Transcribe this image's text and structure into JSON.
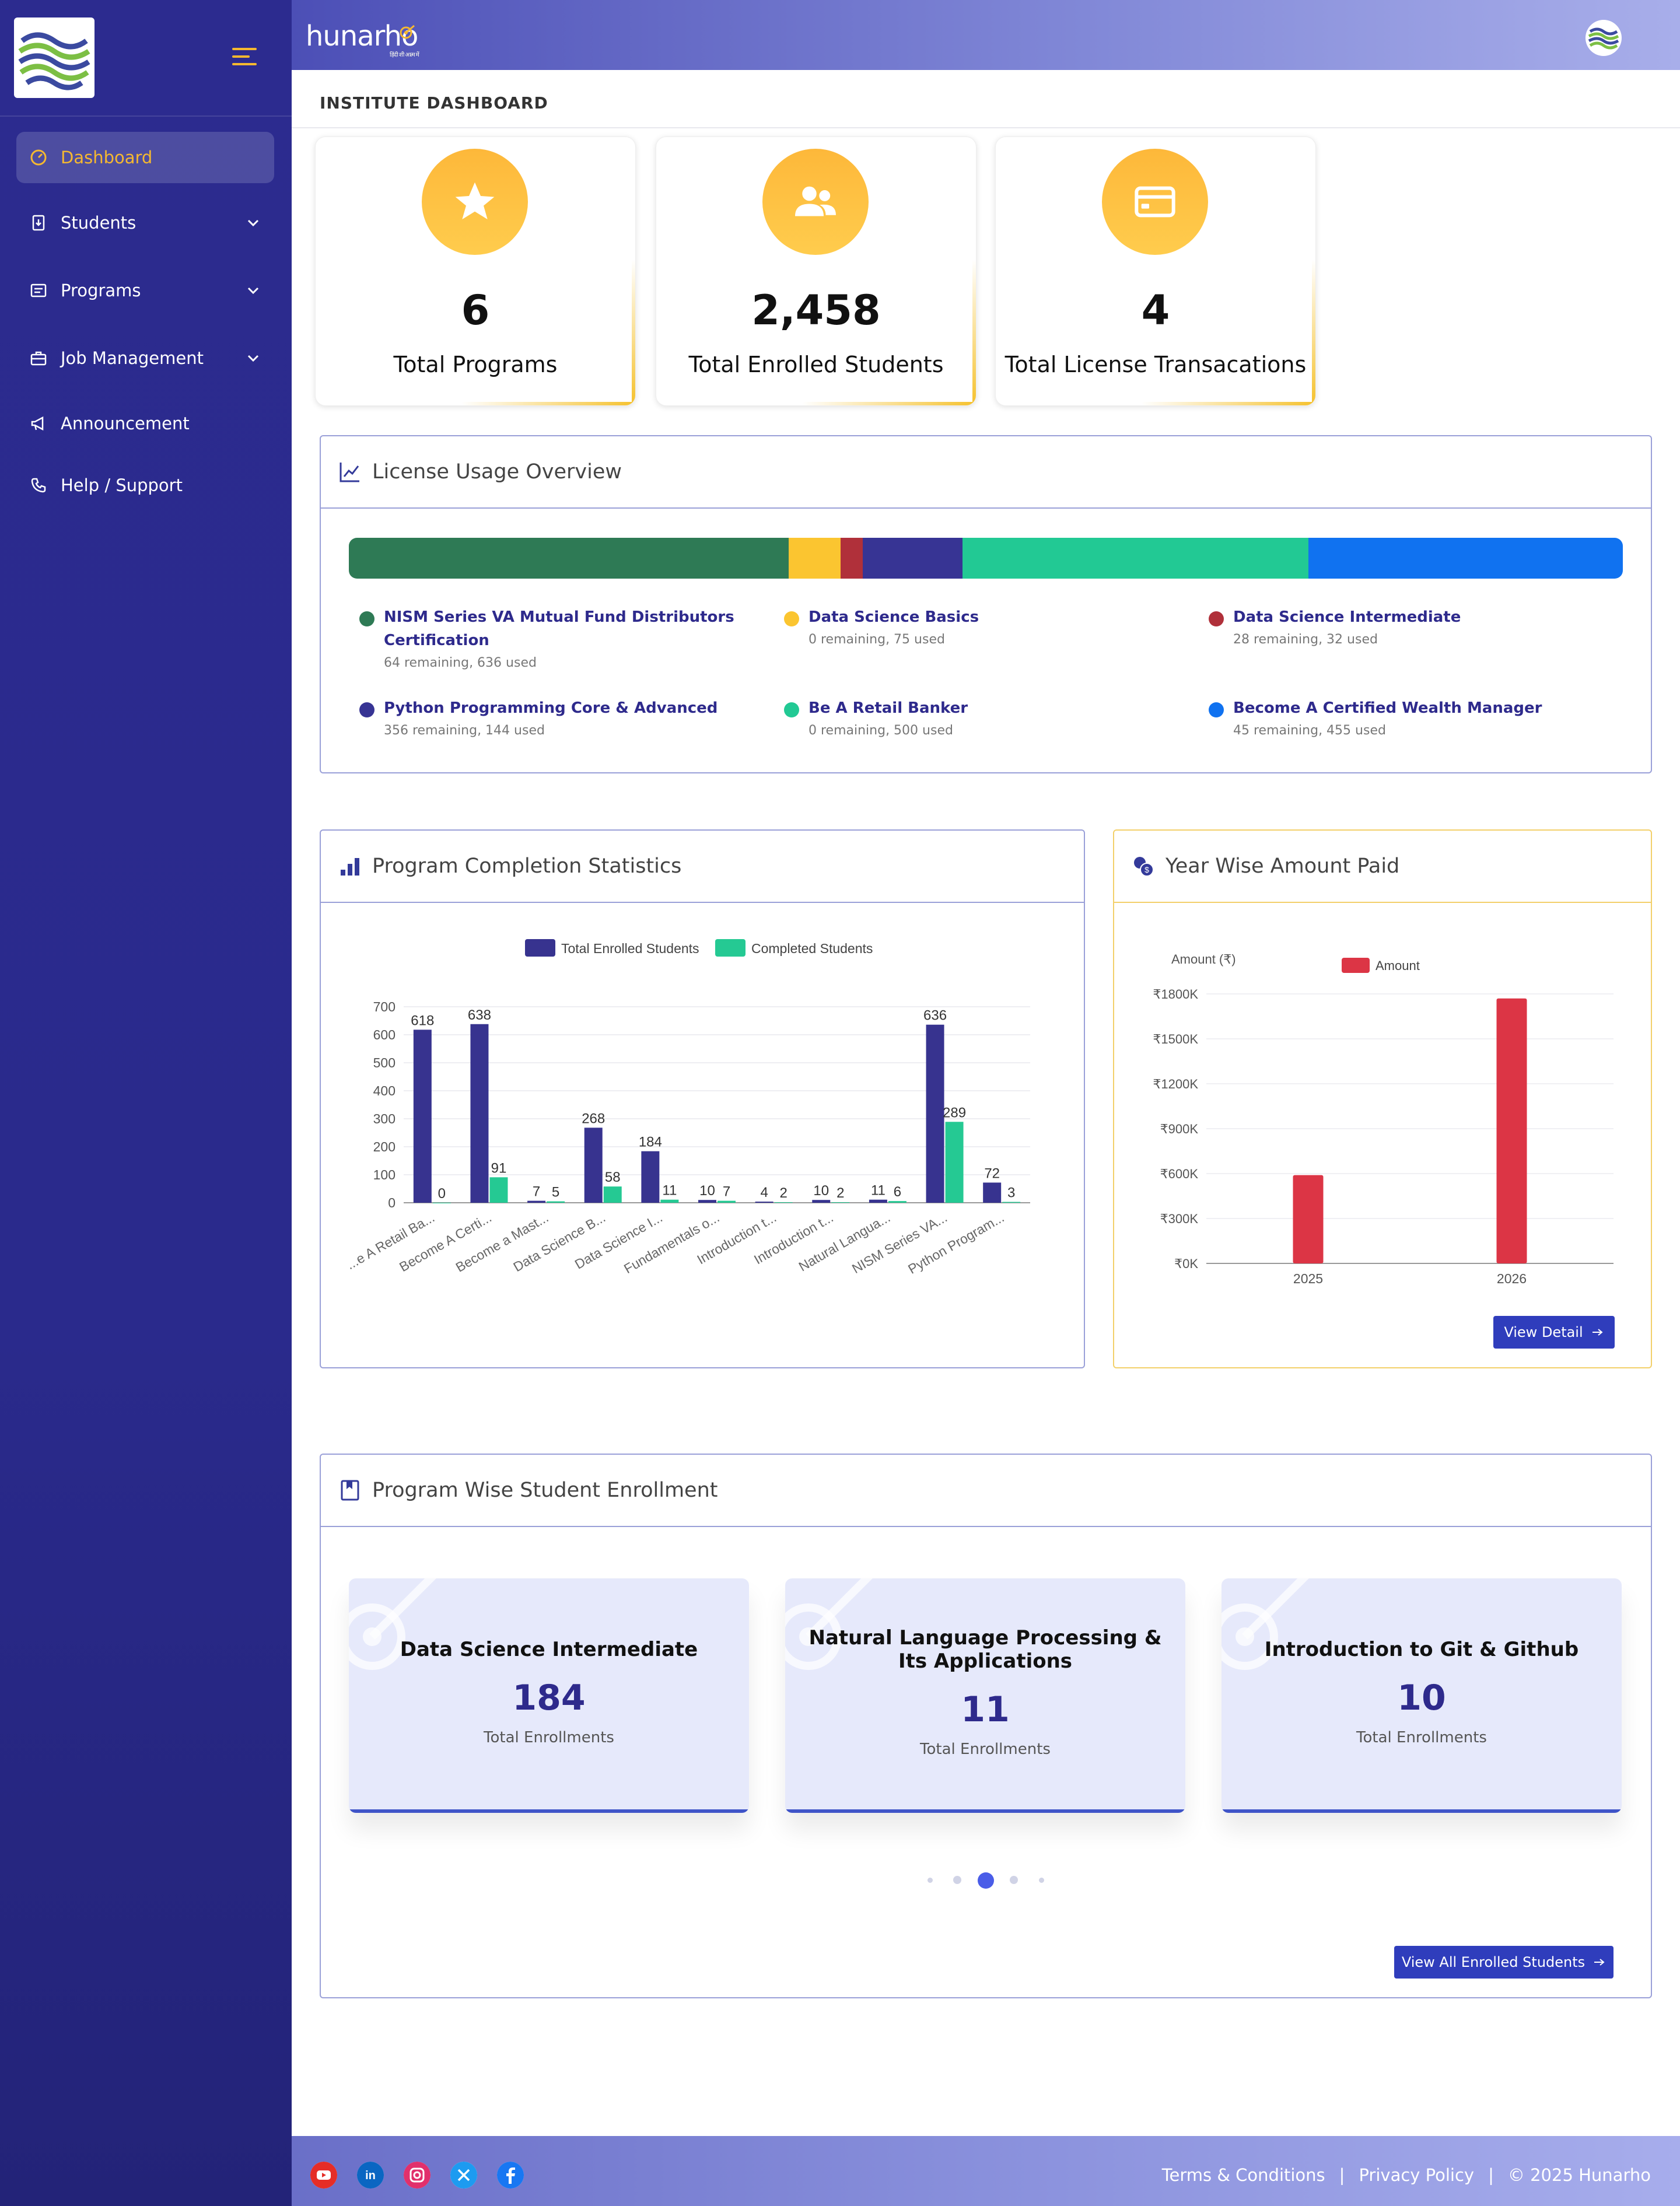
{
  "sidebar": {
    "items": [
      {
        "label": "Dashboard",
        "active": true,
        "icon": "gauge-icon"
      },
      {
        "label": "Students",
        "icon": "student-file-icon",
        "has_submenu": true
      },
      {
        "label": "Programs",
        "icon": "list-icon",
        "has_submenu": true
      },
      {
        "label": "Job Management",
        "icon": "briefcase-icon",
        "has_submenu": true
      },
      {
        "label": "Announcement",
        "icon": "megaphone-icon"
      },
      {
        "label": "Help / Support",
        "icon": "phone-icon"
      }
    ]
  },
  "header": {
    "brand": "hunarho",
    "tagline": "हिंदी शी आत्म में"
  },
  "page_title": "INSTITUTE DASHBOARD",
  "stats": [
    {
      "value": "6",
      "label": "Total Programs",
      "icon": "star-icon"
    },
    {
      "value": "2,458",
      "label": "Total Enrolled Students",
      "icon": "users-icon"
    },
    {
      "value": "4",
      "label": "Total License Transacations",
      "icon": "credit-card-icon"
    }
  ],
  "license": {
    "title": "License Usage Overview",
    "segments": [
      {
        "name": "NISM Series VA Mutual Fund Distributors Certification",
        "sub": "64 remaining, 636 used",
        "color": "#2e7a55",
        "used": 636
      },
      {
        "name": "Data Science Basics",
        "sub": "0 remaining, 75 used",
        "color": "#fbc530",
        "used": 75
      },
      {
        "name": "Data Science Intermediate",
        "sub": "28 remaining, 32 used",
        "color": "#b0303a",
        "used": 32
      },
      {
        "name": "Python Programming Core & Advanced",
        "sub": "356 remaining, 144 used",
        "color": "#373494",
        "used": 144
      },
      {
        "name": "Be A Retail Banker",
        "sub": "0 remaining, 500 used",
        "color": "#22c994",
        "used": 500
      },
      {
        "name": "Become A Certified Wealth Manager",
        "sub": "45 remaining, 455 used",
        "color": "#1072f0",
        "used": 455
      }
    ]
  },
  "completion": {
    "title": "Program Completion Statistics",
    "chart_data": {
      "type": "bar",
      "categories": [
        "...e A Retail Ba...",
        "Become A Certi...",
        "Become a Mast...",
        "Data Science B...",
        "Data Science I...",
        "Fundamentals o...",
        "Introduction t...",
        "Introduction t...",
        "Natural Langua...",
        "NISM Series VA...",
        "Python Program..."
      ],
      "series": [
        {
          "name": "Total Enrolled Students",
          "color": "#37338f",
          "values": [
            618,
            638,
            7,
            268,
            184,
            10,
            4,
            10,
            11,
            636,
            72
          ]
        },
        {
          "name": "Completed Students",
          "color": "#25c993",
          "values": [
            0,
            91,
            5,
            58,
            11,
            7,
            2,
            2,
            6,
            289,
            3
          ]
        }
      ],
      "yticks": [
        "0",
        "100",
        "200",
        "300",
        "400",
        "500",
        "600",
        "700"
      ],
      "ylim": [
        0,
        700
      ]
    }
  },
  "yearwise": {
    "title": "Year Wise Amount Paid",
    "chart_data": {
      "type": "bar",
      "categories": [
        "2025",
        "2026"
      ],
      "series": [
        {
          "name": "Amount",
          "color": "#dc3545",
          "values": [
            590000,
            1770000
          ]
        }
      ],
      "ylabel": "Amount (₹)",
      "yticks": [
        "₹0K",
        "₹300K",
        "₹600K",
        "₹900K",
        "₹1200K",
        "₹1500K",
        "₹1800K"
      ],
      "ylim": [
        0,
        1800000
      ]
    },
    "button": "View Detail"
  },
  "enrollment": {
    "title": "Program Wise Student Enrollment",
    "cards": [
      {
        "name": "Data Science Intermediate",
        "value": "184",
        "sub": "Total Enrollments"
      },
      {
        "name": "Natural Language Processing & Its Applications",
        "value": "11",
        "sub": "Total Enrollments"
      },
      {
        "name": "Introduction to Git & Github",
        "value": "10",
        "sub": "Total Enrollments"
      }
    ],
    "button": "View All Enrolled Students"
  },
  "footer": {
    "social": [
      "youtube-icon",
      "linkedin-icon",
      "instagram-icon",
      "x-icon",
      "facebook-icon"
    ],
    "links": [
      "Terms & Conditions",
      "Privacy Policy",
      "© 2025 Hunarho"
    ],
    "separator": "|"
  }
}
